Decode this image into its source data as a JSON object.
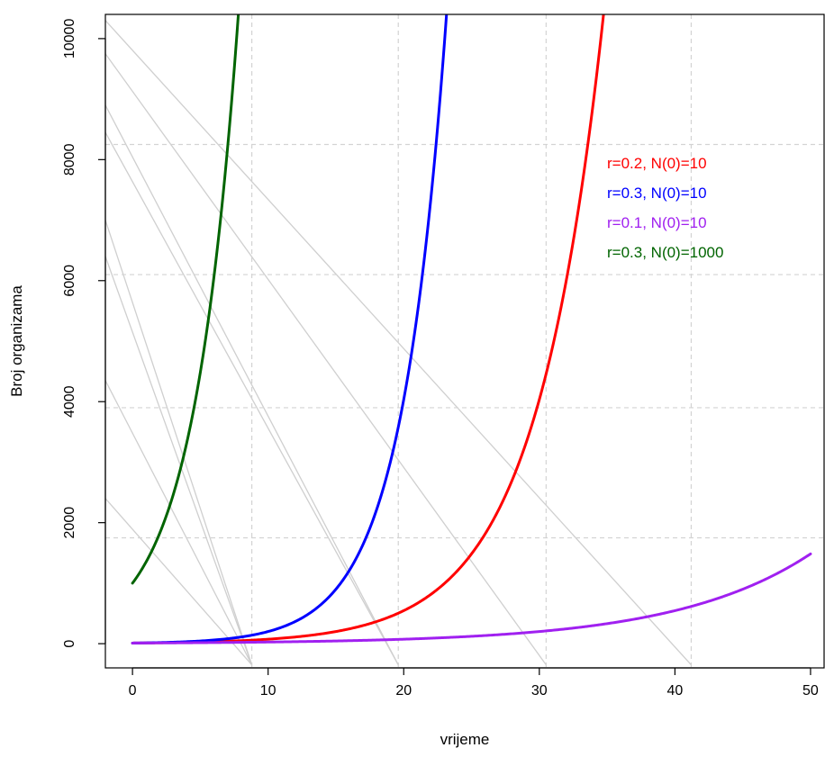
{
  "chart_data": {
    "type": "line",
    "title": "",
    "xlabel": "vrijeme",
    "ylabel": "Broj organizama",
    "xlim": [
      -2,
      51
    ],
    "ylim": [
      -400,
      10400
    ],
    "x_ticks": [
      0,
      10,
      20,
      30,
      40,
      50
    ],
    "y_ticks": [
      0,
      2000,
      4000,
      6000,
      8000,
      10000
    ],
    "grid": "on",
    "legend_position": "right, upper-middle",
    "series": [
      {
        "name": "r=0.2, N(0)=10",
        "color": "#ff0000",
        "r": 0.2,
        "n0": 10,
        "x_max": 50
      },
      {
        "name": "r=0.3, N(0)=10",
        "color": "#0000ff",
        "r": 0.3,
        "n0": 10,
        "x_max": 50
      },
      {
        "name": "r=0.1, N(0)=10",
        "color": "#a020f0",
        "r": 0.1,
        "n0": 10,
        "x_max": 50
      },
      {
        "name": "r=0.3, N(0)=1000",
        "color": "#006400",
        "r": 0.3,
        "n0": 1000,
        "x_max": 50
      }
    ],
    "vertical_reference_lines": [
      8.8,
      19.6,
      30.5,
      41.2
    ],
    "horizontal_reference_lines": [
      1750,
      3900,
      6100,
      8250
    ],
    "diagonal_guides": [
      {
        "x": [
          -2,
          8.8
        ],
        "y": [
          2400,
          -350
        ]
      },
      {
        "x": [
          -2,
          8.8
        ],
        "y": [
          4350,
          -350
        ]
      },
      {
        "x": [
          -2,
          8.8
        ],
        "y": [
          6400,
          -350
        ]
      },
      {
        "x": [
          -2,
          8.8
        ],
        "y": [
          7000,
          -350
        ]
      },
      {
        "x": [
          -2,
          19.6
        ],
        "y": [
          8450,
          -350
        ]
      },
      {
        "x": [
          -2,
          19.6
        ],
        "y": [
          8900,
          -350
        ]
      },
      {
        "x": [
          -2,
          30.5
        ],
        "y": [
          9750,
          -350
        ]
      },
      {
        "x": [
          -2,
          41.2
        ],
        "y": [
          10300,
          -350
        ]
      }
    ]
  }
}
